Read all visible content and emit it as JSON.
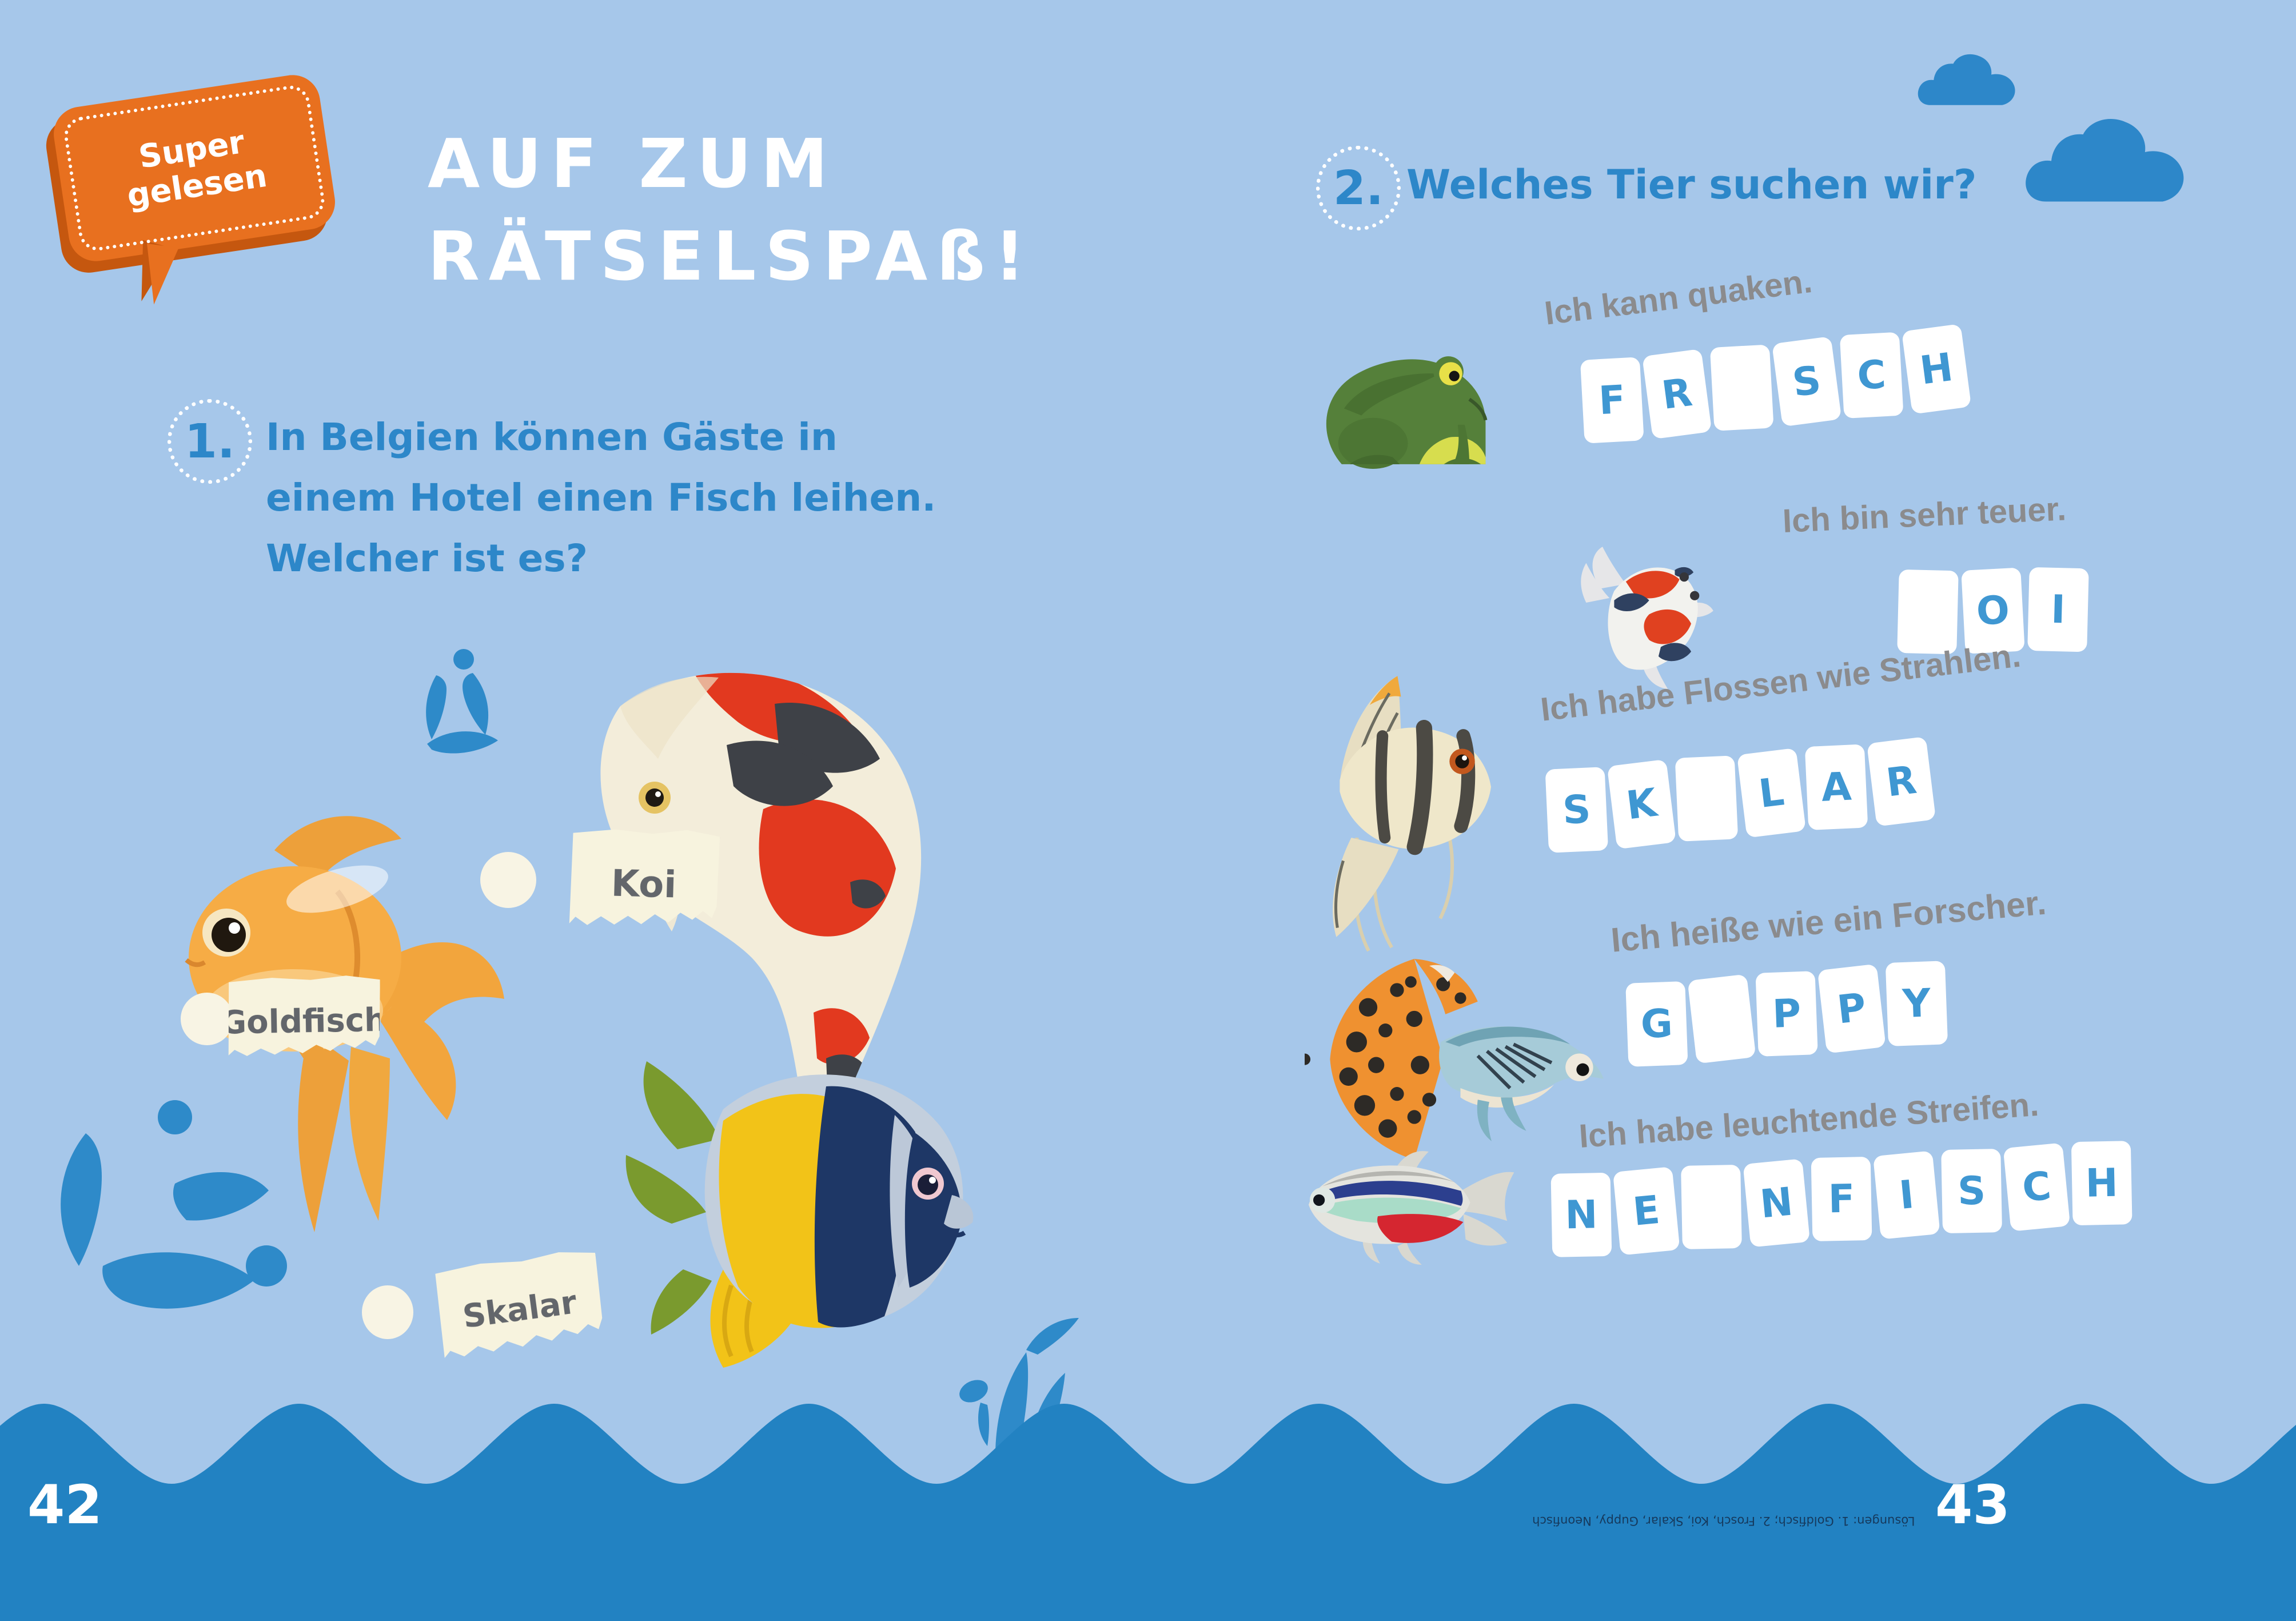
{
  "badge": {
    "line1": "Super",
    "line2": "gelesen"
  },
  "title": {
    "line1": "AUF ZUM",
    "line2": "RÄTSELSPAß!"
  },
  "q1": {
    "number": "1.",
    "lines": [
      "In Belgien können Gäste in",
      "einem Hotel einen Fisch leihen.",
      "Welcher ist es?"
    ]
  },
  "options": [
    {
      "label": "Koi"
    },
    {
      "label": "Goldfisch"
    },
    {
      "label": "Skalar"
    }
  ],
  "q2": {
    "number": "2.",
    "text": "Welches Tier suchen wir?"
  },
  "riddles": [
    {
      "animal": "frosch",
      "clue": "Ich kann quaken.",
      "tiles": [
        "F",
        "R",
        "",
        "S",
        "C",
        "H"
      ]
    },
    {
      "animal": "koi",
      "clue": "Ich bin sehr teuer.",
      "tiles": [
        "",
        "O",
        "I"
      ]
    },
    {
      "animal": "skalar",
      "clue": "Ich habe Flossen wie Strahlen.",
      "tiles": [
        "S",
        "K",
        "",
        "L",
        "A",
        "R"
      ]
    },
    {
      "animal": "guppy",
      "clue": "Ich heiße wie ein Forscher.",
      "tiles": [
        "G",
        "",
        "P",
        "P",
        "Y"
      ]
    },
    {
      "animal": "neonfisch",
      "clue": "Ich habe leuchtende Streifen.",
      "tiles": [
        "N",
        "E",
        "",
        "N",
        "F",
        "I",
        "S",
        "C",
        "H"
      ]
    }
  ],
  "footer": {
    "page_left": "42",
    "page_right": "43",
    "solutions": "Lösungen: 1. Goldfisch; 2. Frosch, Koi, Skalar, Guppy, Neonfisch"
  },
  "colors": {
    "background": "#a6c7ea",
    "wave_blue": "#2282c2",
    "accent_blue": "#2d87c9",
    "tile_letter_blue": "#3f97d2",
    "clue_gray": "#8b8b8d",
    "paper_cream": "#f7f3de",
    "bubble_orange": "#e8701f",
    "bubble_orange_dark": "#c5570f",
    "solutions_navy": "#16395c",
    "white": "#ffffff"
  }
}
